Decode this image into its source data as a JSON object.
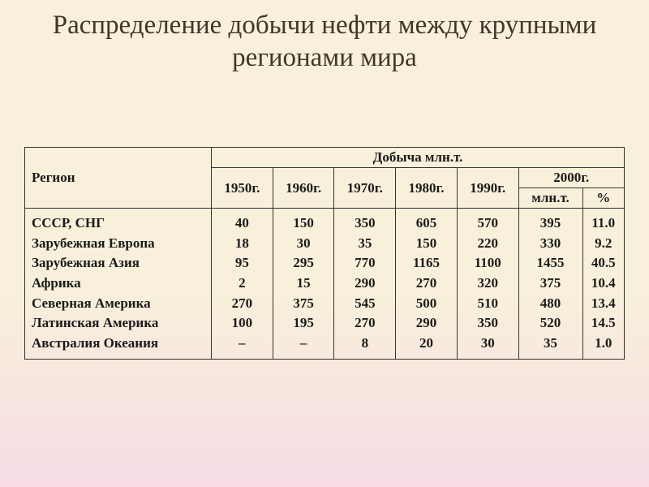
{
  "title": "Распределение добычи нефти между крупными регионами мира",
  "table": {
    "type": "table",
    "border_color": "#333333",
    "font_size": 17,
    "header_background": "transparent",
    "colors": {
      "text": "#1a1a1a",
      "title_text": "#42352b",
      "bg_top": "#f8f0da",
      "bg_bottom": "#f7dce6"
    },
    "headers": {
      "region": "Регион",
      "group": "Добыча млн.т.",
      "y1950": "1950г.",
      "y1960": "1960г.",
      "y1970": "1970г.",
      "y1980": "1980г.",
      "y1990": "1990г.",
      "y2000": "2000г.",
      "y2000_mlnt": "млн.т.",
      "y2000_pct": "%"
    },
    "columns": [
      "region",
      "1950",
      "1960",
      "1970",
      "1980",
      "1990",
      "2000_mlnt",
      "2000_pct"
    ],
    "rows": [
      {
        "region": "СССР, СНГ",
        "v": [
          "40",
          "150",
          "350",
          "605",
          "570",
          "395",
          "11.0"
        ]
      },
      {
        "region": "Зарубежная Европа",
        "v": [
          "18",
          "30",
          "35",
          "150",
          "220",
          "330",
          "9.2"
        ]
      },
      {
        "region": "Зарубежная Азия",
        "v": [
          "95",
          "295",
          "770",
          "1165",
          "1100",
          "1455",
          "40.5"
        ]
      },
      {
        "region": "Африка",
        "v": [
          "2",
          "15",
          "290",
          "270",
          "320",
          "375",
          "10.4"
        ]
      },
      {
        "region": "Северная Америка",
        "v": [
          "270",
          "375",
          "545",
          "500",
          "510",
          "480",
          "13.4"
        ]
      },
      {
        "region": "Латинская Америка",
        "v": [
          "100",
          "195",
          "270",
          "290",
          "350",
          "520",
          "14.5"
        ]
      },
      {
        "region": "Австралия Океания",
        "v": [
          "–",
          "–",
          "8",
          "20",
          "30",
          "35",
          "1.0"
        ]
      }
    ]
  }
}
